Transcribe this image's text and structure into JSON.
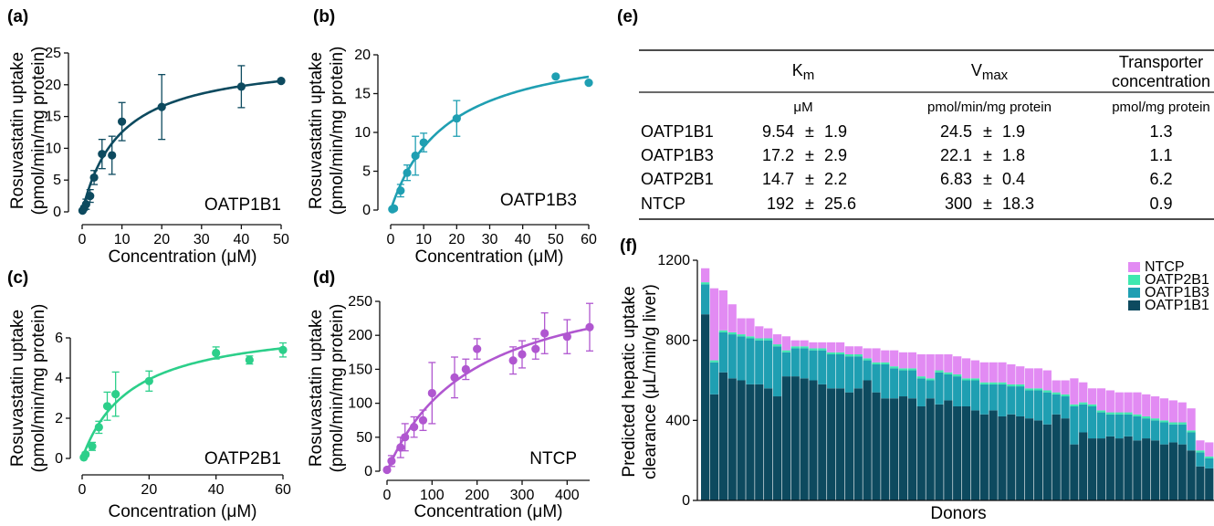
{
  "figure": {
    "panels": {
      "a": {
        "letter": "(a)",
        "label": "OATP1B1"
      },
      "b": {
        "letter": "(b)",
        "label": "OATP1B3"
      },
      "c": {
        "letter": "(c)",
        "label": "OATP2B1"
      },
      "d": {
        "letter": "(d)",
        "label": "NTCP"
      },
      "e": {
        "letter": "(e)"
      },
      "f": {
        "letter": "(f)"
      }
    },
    "ylabel_line1": "Rosuvastatin uptake",
    "ylabel_line2": "(pmol/min/mg protein)",
    "xlabel": "Concentration (μM)"
  },
  "colors": {
    "OATP1B1": "#0d4a5f",
    "OATP1B3": "#1f9fb2",
    "OATP2B1": "#2ccf8a",
    "NTCP": "#b057d0",
    "NTCP_bar": "#e28bf3",
    "OATP2B1_bar": "#3fe8b0"
  },
  "chart_data": [
    {
      "id": "a",
      "type": "scatter",
      "label": "OATP1B1",
      "xlabel": "Concentration (μM)",
      "ylabel": "Rosuvastatin uptake (pmol/min/mg protein)",
      "xlim": [
        0,
        50
      ],
      "ylim": [
        0,
        25
      ],
      "xticks": [
        0,
        10,
        20,
        30,
        40,
        50
      ],
      "yticks": [
        0,
        5,
        10,
        15,
        20,
        25
      ],
      "x": [
        0.1,
        0.5,
        1,
        2,
        3,
        5,
        7.5,
        10,
        20,
        40,
        50
      ],
      "y": [
        0.2,
        0.6,
        1.2,
        2.5,
        5.4,
        9.1,
        8.9,
        14.2,
        16.5,
        19.7,
        20.6
      ],
      "err": [
        0.2,
        0.3,
        0.8,
        1.0,
        1.1,
        2.3,
        3.0,
        3.0,
        5.1,
        3.3,
        0
      ],
      "fit": {
        "model": "michaelis-menten",
        "vmax": 24.5,
        "km": 9.54
      }
    },
    {
      "id": "b",
      "type": "scatter",
      "label": "OATP1B3",
      "xlabel": "Concentration (μM)",
      "ylabel": "Rosuvastatin uptake (pmol/min/mg protein)",
      "xlim": [
        0,
        60
      ],
      "ylim": [
        0,
        20
      ],
      "xticks": [
        0,
        10,
        20,
        30,
        40,
        50,
        60
      ],
      "yticks": [
        0,
        5,
        10,
        15,
        20
      ],
      "x": [
        0.5,
        1,
        3,
        5,
        7.5,
        10,
        20,
        50,
        60
      ],
      "y": [
        0.1,
        0.2,
        2.5,
        4.8,
        7.0,
        8.7,
        11.8,
        17.2,
        16.4
      ],
      "err": [
        0.1,
        0.2,
        0.8,
        1.0,
        2.5,
        1.2,
        2.3,
        0,
        0
      ],
      "fit": {
        "model": "michaelis-menten",
        "vmax": 22.1,
        "km": 17.2
      }
    },
    {
      "id": "c",
      "type": "scatter",
      "label": "OATP2B1",
      "xlabel": "Concentration (μM)",
      "ylabel": "Rosuvastatin uptake (pmol/min/mg protein)",
      "xlim": [
        0,
        60
      ],
      "ylim": [
        0,
        6
      ],
      "xticks": [
        0,
        20,
        40,
        60
      ],
      "yticks": [
        0,
        2,
        4,
        6
      ],
      "x": [
        0.5,
        1,
        3,
        5,
        7.5,
        10,
        20,
        40,
        50,
        60
      ],
      "y": [
        0.05,
        0.2,
        0.6,
        1.55,
        2.6,
        3.2,
        3.85,
        5.25,
        4.9,
        5.4
      ],
      "err": [
        0.05,
        0.1,
        0.2,
        0.3,
        0.7,
        1.1,
        0.5,
        0.3,
        0.2,
        0.35
      ],
      "fit": {
        "model": "michaelis-menten",
        "vmax": 6.83,
        "km": 14.7
      }
    },
    {
      "id": "d",
      "type": "scatter",
      "label": "NTCP",
      "xlabel": "Concentration (μM)",
      "ylabel": "Rosuvastatin uptake (pmol/min/mg protein)",
      "xlim": [
        0,
        450
      ],
      "ylim": [
        0,
        250
      ],
      "xticks": [
        0,
        100,
        200,
        300,
        400
      ],
      "yticks": [
        0,
        50,
        100,
        150,
        200,
        250
      ],
      "x": [
        0,
        10,
        30,
        40,
        60,
        80,
        100,
        150,
        175,
        200,
        280,
        300,
        330,
        350,
        400,
        450
      ],
      "y": [
        2,
        15,
        35,
        50,
        65,
        75,
        115,
        138,
        150,
        180,
        163,
        172,
        180,
        203,
        198,
        212
      ],
      "err": [
        2,
        8,
        15,
        20,
        15,
        15,
        45,
        30,
        15,
        15,
        20,
        20,
        15,
        30,
        25,
        35
      ],
      "fit": {
        "model": "michaelis-menten",
        "vmax": 300,
        "km": 192
      }
    },
    {
      "id": "f",
      "type": "bar",
      "stacked": true,
      "xlabel": "Donors",
      "ylabel": "Predicted hepatic uptake clearance (μL/min/g liver)",
      "ylim": [
        0,
        1200
      ],
      "yticks": [
        0,
        400,
        800,
        1200
      ],
      "legend": [
        "NTCP",
        "OATP2B1",
        "OATP1B3",
        "OATP1B1"
      ],
      "legend_position": "top-right",
      "series": [
        {
          "name": "OATP1B1",
          "values": [
            930,
            530,
            640,
            610,
            600,
            580,
            580,
            560,
            520,
            620,
            620,
            610,
            600,
            580,
            560,
            560,
            540,
            560,
            600,
            540,
            510,
            510,
            520,
            510,
            470,
            510,
            480,
            500,
            470,
            470,
            450,
            430,
            450,
            420,
            430,
            420,
            410,
            400,
            380,
            430,
            410,
            280,
            340,
            310,
            310,
            320,
            310,
            320,
            300,
            310,
            300,
            280,
            290,
            280,
            250,
            170,
            160
          ]
        },
        {
          "name": "OATP1B3",
          "values": [
            150,
            160,
            200,
            220,
            220,
            230,
            220,
            240,
            250,
            120,
            140,
            150,
            150,
            170,
            170,
            170,
            180,
            160,
            100,
            140,
            170,
            150,
            130,
            140,
            140,
            90,
            160,
            130,
            150,
            130,
            150,
            150,
            130,
            160,
            140,
            150,
            140,
            150,
            160,
            100,
            110,
            190,
            140,
            160,
            130,
            110,
            120,
            110,
            120,
            100,
            100,
            110,
            90,
            100,
            90,
            70,
            50
          ]
        },
        {
          "name": "OATP2B1",
          "values": [
            10,
            10,
            10,
            10,
            10,
            10,
            10,
            10,
            10,
            10,
            10,
            10,
            10,
            10,
            10,
            10,
            10,
            10,
            10,
            10,
            10,
            10,
            10,
            10,
            10,
            10,
            10,
            10,
            10,
            10,
            10,
            10,
            10,
            10,
            10,
            10,
            10,
            10,
            10,
            10,
            10,
            10,
            10,
            10,
            10,
            10,
            10,
            10,
            10,
            10,
            10,
            10,
            10,
            10,
            10,
            10,
            10
          ]
        },
        {
          "name": "NTCP",
          "values": [
            70,
            360,
            200,
            140,
            80,
            90,
            60,
            50,
            50,
            70,
            30,
            30,
            30,
            30,
            50,
            50,
            40,
            40,
            50,
            70,
            60,
            80,
            80,
            80,
            110,
            120,
            80,
            90,
            90,
            100,
            90,
            100,
            100,
            100,
            100,
            90,
            100,
            100,
            100,
            60,
            70,
            130,
            100,
            80,
            110,
            110,
            100,
            100,
            110,
            110,
            110,
            110,
            110,
            100,
            110,
            50,
            70
          ]
        }
      ]
    }
  ],
  "table": {
    "col_km": "K",
    "col_km_sub": "m",
    "col_vmax": "V",
    "col_vmax_sub": "max",
    "col_trans_line1": "Transporter",
    "col_trans_line2": "concentration",
    "unit_km": "μM",
    "unit_vmax": "pmol/min/mg protein",
    "unit_trans": "pmol/mg protein",
    "pm": "±",
    "rows": [
      {
        "name": "OATP1B1",
        "km": "9.54",
        "km_sd": "1.9",
        "vmax": "24.5",
        "vmax_sd": "1.9",
        "conc": "1.3"
      },
      {
        "name": "OATP1B3",
        "km": "17.2",
        "km_sd": "2.9",
        "vmax": "22.1",
        "vmax_sd": "1.8",
        "conc": "1.1"
      },
      {
        "name": "OATP2B1",
        "km": "14.7",
        "km_sd": "2.2",
        "vmax": "6.83",
        "vmax_sd": "0.4",
        "conc": "6.2"
      },
      {
        "name": "NTCP",
        "km": "192",
        "km_sd": "25.6",
        "vmax": "300",
        "vmax_sd": "18.3",
        "conc": "0.9"
      }
    ]
  }
}
